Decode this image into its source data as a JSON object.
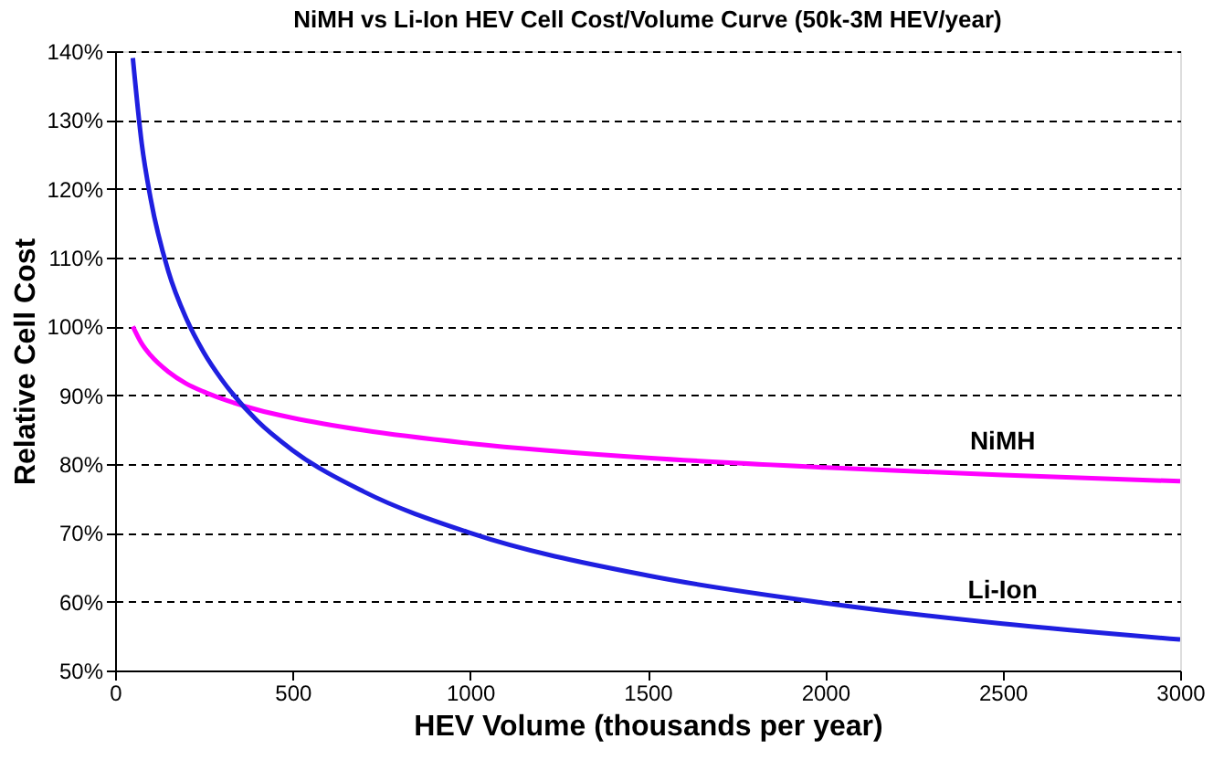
{
  "chart_data": {
    "type": "line",
    "title": "NiMH vs Li-Ion HEV Cell Cost/Volume Curve (50k-3M HEV/year)",
    "xlabel": "HEV Volume (thousands per year)",
    "ylabel": "Relative Cell Cost",
    "x": [
      50,
      75,
      100,
      150,
      200,
      250,
      300,
      400,
      500,
      700,
      1000,
      1500,
      2000,
      2500,
      3000
    ],
    "series": [
      {
        "name": "NiMH",
        "color": "#ff00ff",
        "values": [
          100,
          97.5,
          95.8,
          93.4,
          91.7,
          90.5,
          89.5,
          87.9,
          86.7,
          84.9,
          83,
          80.9,
          79.5,
          78.4,
          77.5
        ]
      },
      {
        "name": "Li-Ion",
        "color": "#1f1fe0",
        "values": [
          139,
          126.6,
          118.6,
          108,
          101.2,
          96.2,
          92.3,
          86.3,
          82,
          76,
          70,
          63.8,
          59.8,
          56.8,
          54.5
        ]
      }
    ],
    "xlim": [
      0,
      3000
    ],
    "xticks": [
      0,
      500,
      1000,
      1500,
      2000,
      2500,
      3000
    ],
    "ylim": [
      50,
      140
    ],
    "yticks": [
      {
        "value": 50,
        "label": "50%"
      },
      {
        "value": 60,
        "label": "60%"
      },
      {
        "value": 70,
        "label": "70%"
      },
      {
        "value": 80,
        "label": "80%"
      },
      {
        "value": 90,
        "label": "90%"
      },
      {
        "value": 100,
        "label": "100%"
      },
      {
        "value": 110,
        "label": "110%"
      },
      {
        "value": 120,
        "label": "120%"
      },
      {
        "value": 130,
        "label": "130%"
      },
      {
        "value": 140,
        "label": "140%"
      }
    ],
    "grid": "y",
    "legend": false,
    "marker": "none",
    "line_style": "solid"
  }
}
